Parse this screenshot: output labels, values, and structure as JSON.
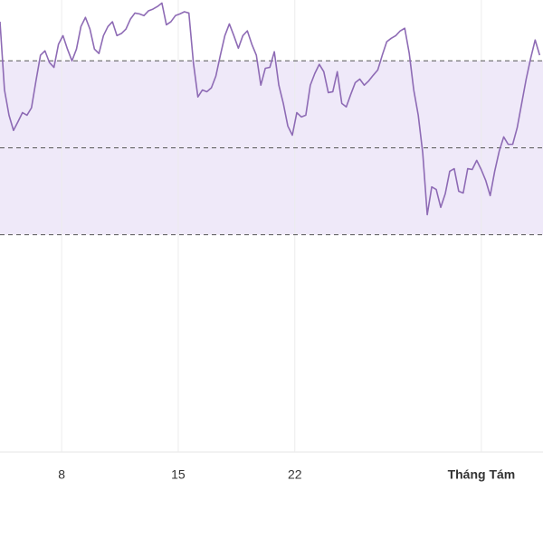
{
  "chart_data": {
    "type": "line",
    "x": [
      4.3,
      4.57,
      4.84,
      5.11,
      5.38,
      5.65,
      5.92,
      6.19,
      6.46,
      6.73,
      7.0,
      7.27,
      7.54,
      7.81,
      8.08,
      8.35,
      8.62,
      8.89,
      9.16,
      9.43,
      9.7,
      9.97,
      10.24,
      10.51,
      10.78,
      11.05,
      11.32,
      11.59,
      11.86,
      12.13,
      12.4,
      12.67,
      12.94,
      13.21,
      13.48,
      13.75,
      14.02,
      14.29,
      14.56,
      14.83,
      15.1,
      15.37,
      15.64,
      15.91,
      16.18,
      16.45,
      16.72,
      16.99,
      17.26,
      17.53,
      17.8,
      18.07,
      18.34,
      18.61,
      18.88,
      19.15,
      19.42,
      19.69,
      19.96,
      20.23,
      20.5,
      20.77,
      21.04,
      21.31,
      21.58,
      21.85,
      22.12,
      22.39,
      22.66,
      22.93,
      23.2,
      23.47,
      23.74,
      24.01,
      24.28,
      24.55,
      24.82,
      25.09,
      25.36,
      25.63,
      25.9,
      26.17,
      26.44,
      26.71,
      26.98,
      27.25,
      27.52,
      27.79,
      28.06,
      28.33,
      28.6,
      28.87,
      29.14,
      29.41,
      29.68,
      29.95,
      30.22,
      30.49,
      30.76,
      31.03,
      31.3,
      31.57,
      31.84,
      32.11,
      32.38,
      32.65,
      32.92,
      33.19,
      33.46,
      33.73,
      34.0,
      34.27,
      34.54,
      34.81,
      35.08,
      35.35,
      35.62,
      35.89,
      36.16,
      36.43,
      36.7
    ],
    "series": [
      {
        "color": "#8e6bb5",
        "values": [
          99.0,
          83.3,
          77.5,
          74.0,
          76.0,
          78.1,
          77.5,
          79.2,
          85.4,
          91.3,
          92.3,
          89.6,
          88.5,
          93.8,
          95.8,
          92.7,
          90.0,
          92.7,
          97.9,
          100.0,
          97.3,
          92.7,
          91.7,
          95.8,
          97.9,
          99.0,
          95.8,
          96.3,
          97.3,
          99.6,
          101.0,
          100.8,
          100.4,
          101.5,
          101.9,
          102.5,
          103.3,
          98.3,
          99.0,
          100.4,
          100.8,
          101.3,
          101.0,
          89.6,
          81.7,
          83.3,
          82.9,
          83.8,
          86.5,
          91.3,
          95.8,
          98.5,
          95.8,
          92.9,
          95.8,
          96.9,
          93.8,
          91.3,
          84.4,
          88.3,
          88.5,
          92.1,
          84.4,
          80.2,
          75.0,
          72.9,
          78.1,
          77.1,
          77.5,
          84.4,
          87.1,
          89.2,
          87.5,
          82.7,
          82.9,
          87.5,
          80.2,
          79.4,
          82.3,
          85.0,
          85.8,
          84.4,
          85.4,
          86.7,
          87.9,
          91.3,
          94.4,
          95.2,
          95.8,
          96.9,
          97.5,
          91.7,
          83.3,
          77.5,
          68.8,
          54.6,
          61.0,
          60.4,
          56.3,
          59.4,
          64.6,
          65.2,
          60.0,
          59.6,
          65.2,
          65.0,
          67.1,
          65.0,
          62.5,
          59.0,
          64.6,
          69.2,
          72.5,
          70.8,
          70.8,
          74.6,
          80.2,
          85.8,
          90.6,
          94.8,
          91.3
        ]
      }
    ],
    "xlim": [
      4.3,
      36.9
    ],
    "xticks": [
      8,
      15,
      22,
      {
        "value": 33.2,
        "label": "Tháng Tám"
      }
    ],
    "ylim": [
      0,
      104
    ],
    "reference_lines": [
      50,
      70,
      90
    ],
    "band_color": "#efe9f9",
    "grid": true
  }
}
